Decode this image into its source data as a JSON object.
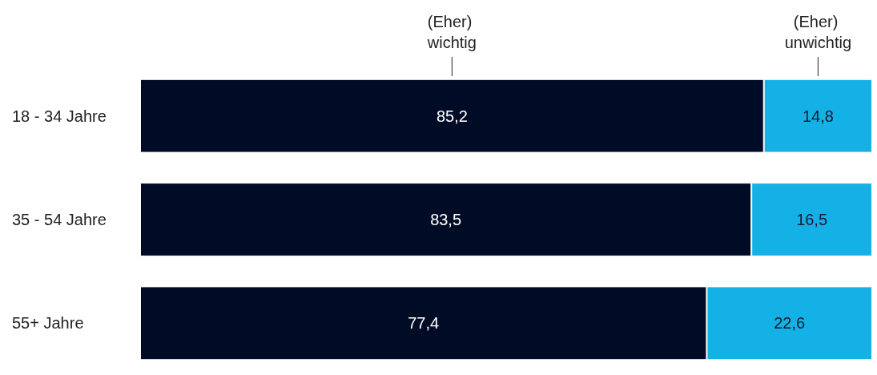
{
  "chart_data": {
    "type": "bar",
    "orientation": "horizontal",
    "stacked": true,
    "categories": [
      "18 - 34 Jahre",
      "35 - 54 Jahre",
      "55+ Jahre"
    ],
    "series": [
      {
        "name": "(Eher) wichtig",
        "color": "#000c26",
        "values": [
          85.2,
          83.5,
          77.4
        ],
        "value_labels": [
          "85,2",
          "83,5",
          "77,4"
        ]
      },
      {
        "name": "(Eher) unwichtig",
        "color": "#14b1e7",
        "values": [
          14.8,
          16.5,
          22.6
        ],
        "value_labels": [
          "14,8",
          "16,5",
          "22,6"
        ]
      }
    ],
    "tick_labels": "y",
    "legend": false
  }
}
